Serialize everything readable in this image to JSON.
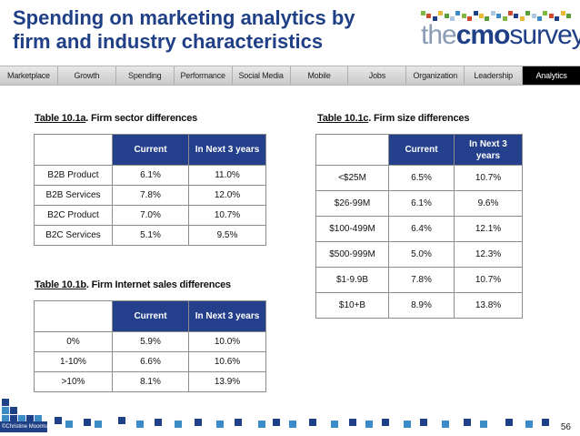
{
  "slide": {
    "title": "Spending on marketing analytics by firm and industry characteristics",
    "page_number": "56",
    "copyright": "©Christine Moorman"
  },
  "logo": {
    "part1": "the",
    "part2": "cmo",
    "part3": "survey"
  },
  "nav": {
    "items": [
      "Marketplace",
      "Growth",
      "Spending",
      "Performance",
      "Social Media",
      "Mobile",
      "Jobs",
      "Organization",
      "Leadership",
      "Analytics"
    ],
    "active": "Analytics"
  },
  "table_a": {
    "caption_id": "Table 10.1a",
    "caption_rest": ". Firm sector differences",
    "headers": [
      "",
      "Current",
      "In Next 3 years"
    ],
    "rows": [
      [
        "B2B Product",
        "6.1%",
        "11.0%"
      ],
      [
        "B2B Services",
        "7.8%",
        "12.0%"
      ],
      [
        "B2C Product",
        "7.0%",
        "10.7%"
      ],
      [
        "B2C Services",
        "5.1%",
        "9.5%"
      ]
    ]
  },
  "table_b": {
    "caption_id": "Table 10.1b",
    "caption_rest": ". Firm Internet sales differences",
    "headers": [
      "",
      "Current",
      "In Next 3 years"
    ],
    "rows": [
      [
        "0%",
        "5.9%",
        "10.0%"
      ],
      [
        "1-10%",
        "6.6%",
        "10.6%"
      ],
      [
        ">10%",
        "8.1%",
        "13.9%"
      ]
    ]
  },
  "table_c": {
    "caption_id": "Table 10.1c",
    "caption_rest": ".  Firm size differences",
    "headers": [
      "",
      "Current",
      "In Next 3 years"
    ],
    "rows": [
      [
        "<$25M",
        "6.5%",
        "10.7%"
      ],
      [
        "$26-99M",
        "6.1%",
        "9.6%"
      ],
      [
        "$100-499M",
        "6.4%",
        "12.1%"
      ],
      [
        "$500-999M",
        "5.0%",
        "12.3%"
      ],
      [
        "$1-9.9B",
        "7.8%",
        "10.7%"
      ],
      [
        "$10+B",
        "8.9%",
        "13.8%"
      ]
    ]
  },
  "colors": {
    "title": "#1f3f86",
    "header_fill": "#243f8b",
    "nav_active": "#000000",
    "decor_squares": [
      "#1f3f86",
      "#7fb741",
      "#e9b935",
      "#3b8bc6",
      "#aac8e4",
      "#5a9e3a"
    ]
  }
}
